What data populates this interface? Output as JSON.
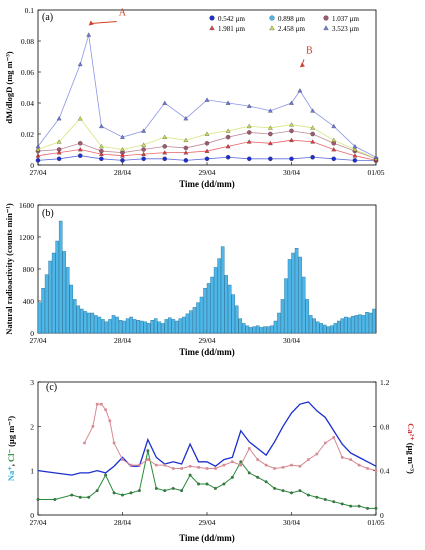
{
  "chart_data": [
    {
      "panel_label": "(a)",
      "type": "scatter",
      "xlabel": "Time (dd/mm)",
      "ylabel": "dM/dlogD (mg m⁻³)",
      "x_ticks": [
        "27/04",
        "28/04",
        "29/04",
        "30/04",
        "01/05"
      ],
      "xlim": [
        0,
        4
      ],
      "ylim": [
        0,
        0.1
      ],
      "y_ticks": [
        "0",
        "0.02",
        "0.04",
        "0.06",
        "0.08",
        "0.1"
      ],
      "legend_position": "top-right",
      "series": [
        {
          "name": "0.542 µm",
          "color": "#1a2fd0",
          "marker": "circle",
          "x": [
            0,
            0.25,
            0.5,
            0.75,
            1,
            1.25,
            1.5,
            1.75,
            2,
            2.25,
            2.5,
            2.75,
            3,
            3.25,
            3.5,
            3.75,
            4
          ],
          "y": [
            0.003,
            0.004,
            0.006,
            0.004,
            0.003,
            0.004,
            0.004,
            0.003,
            0.004,
            0.005,
            0.004,
            0.004,
            0.004,
            0.005,
            0.004,
            0.003,
            0.003
          ]
        },
        {
          "name": "1.037 µm",
          "color": "#a05a6e",
          "marker": "circle",
          "x": [
            0,
            0.25,
            0.5,
            0.75,
            1,
            1.25,
            1.5,
            1.75,
            2,
            2.25,
            2.5,
            2.75,
            3,
            3.25,
            3.5,
            3.75,
            4
          ],
          "y": [
            0.009,
            0.01,
            0.014,
            0.009,
            0.008,
            0.01,
            0.012,
            0.011,
            0.014,
            0.018,
            0.021,
            0.02,
            0.022,
            0.02,
            0.014,
            0.009,
            0.004
          ]
        },
        {
          "name": "1.981 µm",
          "color": "#e0202a",
          "marker": "triangle",
          "x": [
            0,
            0.25,
            0.5,
            0.75,
            1,
            1.25,
            1.5,
            1.75,
            2,
            2.25,
            2.5,
            2.75,
            3,
            3.25,
            3.5,
            3.75,
            4
          ],
          "y": [
            0.006,
            0.008,
            0.01,
            0.007,
            0.006,
            0.007,
            0.008,
            0.008,
            0.009,
            0.012,
            0.015,
            0.014,
            0.016,
            0.015,
            0.01,
            0.006,
            0.003
          ]
        },
        {
          "name": "2.458 µm",
          "color": "#c8d840",
          "marker": "triangle",
          "x": [
            0,
            0.25,
            0.5,
            0.75,
            1,
            1.25,
            1.5,
            1.75,
            2,
            2.25,
            2.5,
            2.75,
            3,
            3.25,
            3.5,
            3.75,
            4
          ],
          "y": [
            0.01,
            0.015,
            0.03,
            0.012,
            0.01,
            0.013,
            0.018,
            0.016,
            0.02,
            0.022,
            0.025,
            0.024,
            0.026,
            0.024,
            0.016,
            0.01,
            0.004
          ]
        },
        {
          "name": "3.523 µm",
          "color": "#5a6ad8",
          "marker": "triangle",
          "x": [
            0,
            0.25,
            0.5,
            0.6,
            0.75,
            1,
            1.25,
            1.5,
            1.75,
            2,
            2.25,
            2.5,
            2.75,
            3,
            3.1,
            3.25,
            3.5,
            3.75,
            4
          ],
          "y": [
            0.012,
            0.03,
            0.065,
            0.084,
            0.025,
            0.018,
            0.022,
            0.04,
            0.03,
            0.042,
            0.04,
            0.038,
            0.035,
            0.04,
            0.048,
            0.035,
            0.025,
            0.012,
            0.005
          ]
        }
      ],
      "annotations": [
        {
          "text": "A",
          "x": 0.6,
          "y": 0.09,
          "color": "#d0402a"
        },
        {
          "text": "B",
          "x": 3.1,
          "y": 0.063,
          "color": "#d0402a"
        }
      ]
    },
    {
      "panel_label": "(b)",
      "type": "bar",
      "xlabel": "Time (dd/mm)",
      "ylabel": "Natural radioactivity (counts min⁻¹)",
      "x_ticks": [
        "27/04",
        "28/04",
        "29/04",
        "30/04"
      ],
      "xlim": [
        0,
        4
      ],
      "ylim": [
        0,
        1600
      ],
      "y_ticks": [
        "0",
        "400",
        "800",
        "1200",
        "1600"
      ],
      "color": "#4fb7e8",
      "bar_width": 0.0417,
      "x": [
        0,
        0.0417,
        0.0833,
        0.125,
        0.1667,
        0.2083,
        0.25,
        0.2917,
        0.3333,
        0.375,
        0.4167,
        0.4583,
        0.5,
        0.5417,
        0.5833,
        0.625,
        0.6667,
        0.7083,
        0.75,
        0.7917,
        0.8333,
        0.875,
        0.9167,
        0.9583,
        1,
        1.0417,
        1.0833,
        1.125,
        1.1667,
        1.2083,
        1.25,
        1.2917,
        1.3333,
        1.375,
        1.4167,
        1.4583,
        1.5,
        1.5417,
        1.5833,
        1.625,
        1.6667,
        1.7083,
        1.75,
        1.7917,
        1.8333,
        1.875,
        1.9167,
        1.9583,
        2,
        2.0417,
        2.0833,
        2.125,
        2.1667,
        2.2083,
        2.25,
        2.2917,
        2.3333,
        2.375,
        2.4167,
        2.4583,
        2.5,
        2.5417,
        2.5833,
        2.625,
        2.6667,
        2.7083,
        2.75,
        2.7917,
        2.8333,
        2.875,
        2.9167,
        2.9583,
        3,
        3.0417,
        3.0833,
        3.125,
        3.1667,
        3.2083,
        3.25,
        3.2917,
        3.3333,
        3.375,
        3.4167,
        3.4583,
        3.5,
        3.5417,
        3.5833,
        3.625,
        3.6667,
        3.7083,
        3.75,
        3.7917,
        3.8333,
        3.875,
        3.9167,
        3.9583
      ],
      "values": [
        380,
        560,
        730,
        900,
        1000,
        1150,
        1400,
        1020,
        820,
        600,
        420,
        340,
        300,
        270,
        250,
        250,
        220,
        200,
        170,
        140,
        170,
        220,
        200,
        160,
        150,
        180,
        200,
        170,
        160,
        150,
        140,
        120,
        160,
        180,
        140,
        120,
        170,
        190,
        170,
        150,
        180,
        200,
        240,
        280,
        320,
        380,
        450,
        560,
        620,
        700,
        820,
        930,
        1080,
        720,
        600,
        480,
        340,
        180,
        120,
        90,
        70,
        80,
        90,
        70,
        80,
        80,
        90,
        150,
        250,
        420,
        680,
        920,
        1000,
        1060,
        950,
        700,
        420,
        220,
        180,
        140,
        120,
        100,
        80,
        90,
        120,
        150,
        180,
        200,
        190,
        210,
        220,
        230,
        220,
        260,
        250,
        300
      ]
    },
    {
      "panel_label": "(c)",
      "type": "line",
      "xlabel": "Time (dd/mm)",
      "y_ticks_left": [
        "0",
        "1",
        "2",
        "3"
      ],
      "y_ticks_right": [
        "0",
        "0.4",
        "0.8",
        "1.2"
      ],
      "x_ticks": [
        "27/04",
        "28/04",
        "29/04",
        "30/04",
        "01/05"
      ],
      "xlim": [
        0,
        4
      ],
      "ylim_left": [
        0,
        3
      ],
      "ylim_right": [
        0,
        1.2
      ],
      "ylabel_left": [
        {
          "text": "Na⁺",
          "color": "#2ab0d8"
        },
        {
          "text": ", ",
          "color": "#000000"
        },
        {
          "text": "Cl⁻",
          "color": "#2a8a3a"
        },
        {
          "text": " (µg m⁻³)",
          "color": "#000000"
        }
      ],
      "ylabel_right": [
        {
          "text": "Ca²⁺",
          "color": "#d03030"
        },
        {
          "text": " (µg m⁻³)",
          "color": "#000000"
        }
      ],
      "series": [
        {
          "name": "Na⁺",
          "color": "#1a2fd0",
          "axis": "left",
          "marker": "none",
          "x": [
            0,
            0.2,
            0.4,
            0.5,
            0.6,
            0.7,
            0.8,
            0.9,
            1,
            1.1,
            1.2,
            1.3,
            1.4,
            1.5,
            1.6,
            1.7,
            1.8,
            1.9,
            2,
            2.1,
            2.2,
            2.3,
            2.4,
            2.5,
            2.6,
            2.7,
            2.8,
            2.9,
            3,
            3.1,
            3.2,
            3.3,
            3.4,
            3.5,
            3.6,
            3.7,
            3.8,
            3.9,
            4
          ],
          "y": [
            1,
            0.95,
            0.9,
            0.95,
            0.95,
            1,
            0.95,
            1.1,
            1.3,
            1.1,
            1.1,
            1.7,
            1.3,
            1.15,
            1.2,
            1.15,
            1.6,
            1.2,
            1.2,
            1.1,
            1.25,
            1.3,
            1.9,
            1.65,
            1.5,
            1.35,
            1.65,
            2.0,
            2.3,
            2.5,
            2.55,
            2.35,
            2.2,
            1.9,
            1.6,
            1.4,
            1.3,
            1.2,
            1.1
          ]
        },
        {
          "name": "Cl⁻",
          "color": "#2a8a3a",
          "axis": "left",
          "marker": "circle",
          "x": [
            0,
            0.2,
            0.4,
            0.5,
            0.6,
            0.7,
            0.8,
            0.9,
            1,
            1.1,
            1.2,
            1.3,
            1.4,
            1.5,
            1.6,
            1.7,
            1.8,
            1.9,
            2,
            2.1,
            2.2,
            2.3,
            2.4,
            2.5,
            2.6,
            2.7,
            2.8,
            2.9,
            3,
            3.1,
            3.2,
            3.3,
            3.4,
            3.5,
            3.6,
            3.7,
            3.8,
            3.9,
            4
          ],
          "y": [
            0.35,
            0.35,
            0.45,
            0.4,
            0.4,
            0.55,
            0.9,
            0.5,
            0.45,
            0.5,
            0.55,
            1.45,
            0.6,
            0.55,
            0.6,
            0.55,
            0.9,
            0.7,
            0.7,
            0.6,
            0.7,
            0.85,
            1.2,
            0.95,
            0.85,
            0.75,
            0.6,
            0.55,
            0.5,
            0.55,
            0.45,
            0.4,
            0.35,
            0.3,
            0.25,
            0.2,
            0.2,
            0.15,
            0.15
          ]
        },
        {
          "name": "Ca²⁺",
          "color": "#d88a94",
          "axis": "right",
          "marker": "square",
          "x": [
            0.55,
            0.65,
            0.7,
            0.75,
            0.8,
            0.85,
            0.9,
            1,
            1.1,
            1.2,
            1.3,
            1.4,
            1.5,
            1.6,
            1.7,
            1.8,
            1.9,
            2,
            2.1,
            2.2,
            2.3,
            2.4,
            2.5,
            2.6,
            2.7,
            2.8,
            2.9,
            3,
            3.1,
            3.2,
            3.3,
            3.4,
            3.5,
            3.6,
            3.7,
            3.8,
            3.9,
            4
          ],
          "y": [
            0.65,
            0.8,
            1.0,
            1.0,
            0.95,
            0.85,
            0.65,
            0.5,
            0.45,
            0.45,
            0.5,
            0.45,
            0.45,
            0.42,
            0.42,
            0.44,
            0.43,
            0.42,
            0.42,
            0.45,
            0.48,
            0.45,
            0.6,
            0.5,
            0.45,
            0.42,
            0.43,
            0.45,
            0.44,
            0.5,
            0.55,
            0.65,
            0.7,
            0.52,
            0.5,
            0.45,
            0.42,
            0.4
          ]
        }
      ]
    }
  ]
}
